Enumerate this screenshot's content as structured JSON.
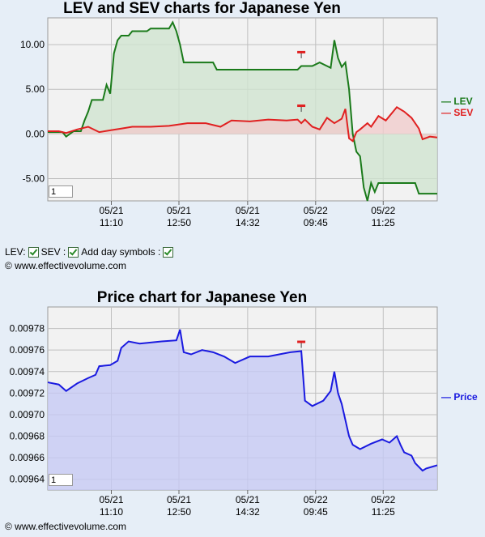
{
  "chart_data": [
    {
      "type": "line",
      "title": "LEV and SEV charts for Japanese Yen",
      "x_tick_labels": [
        [
          "05/21",
          "11:10"
        ],
        [
          "05/21",
          "12:50"
        ],
        [
          "05/21",
          "14:32"
        ],
        [
          "05/22",
          "09:45"
        ],
        [
          "05/22",
          "11:25"
        ]
      ],
      "y_ticks": [
        "10.00",
        "5.00",
        "0.00",
        "-5.00"
      ],
      "ylim": [
        -7.5,
        13
      ],
      "series": [
        {
          "name": "LEV",
          "color": "#1a7a1a",
          "fill": "#cfe3cf",
          "points": [
            [
              0,
              0.2
            ],
            [
              4,
              0.2
            ],
            [
              5,
              -0.3
            ],
            [
              7,
              0.3
            ],
            [
              9,
              0.3
            ],
            [
              10,
              1.5
            ],
            [
              11,
              2.5
            ],
            [
              12,
              3.8
            ],
            [
              15,
              3.8
            ],
            [
              16,
              5.5
            ],
            [
              17,
              4.5
            ],
            [
              18,
              9
            ],
            [
              19,
              10.5
            ],
            [
              20,
              11
            ],
            [
              22,
              11
            ],
            [
              23,
              11.5
            ],
            [
              27,
              11.5
            ],
            [
              28,
              11.8
            ],
            [
              33,
              11.8
            ],
            [
              34,
              12.5
            ],
            [
              35,
              11.5
            ],
            [
              36,
              10
            ],
            [
              37,
              8
            ],
            [
              45,
              8
            ],
            [
              46,
              7.2
            ],
            [
              68,
              7.2
            ],
            [
              69,
              7.6
            ],
            [
              72,
              7.6
            ],
            [
              74,
              8
            ],
            [
              77,
              7.4
            ],
            [
              78,
              10.5
            ],
            [
              79,
              8.5
            ],
            [
              80,
              7.5
            ],
            [
              81,
              8
            ],
            [
              82,
              5
            ],
            [
              83,
              0
            ],
            [
              84,
              -2
            ],
            [
              85,
              -2.5
            ],
            [
              86,
              -6
            ],
            [
              87,
              -7.5
            ],
            [
              88,
              -5.5
            ],
            [
              89,
              -6.5
            ],
            [
              90,
              -5.5
            ],
            [
              100,
              -5.5
            ],
            [
              101,
              -6.7
            ],
            [
              106,
              -6.7
            ]
          ]
        },
        {
          "name": "SEV",
          "color": "#e02020",
          "fill": "#f0cccc",
          "points": [
            [
              0,
              0.3
            ],
            [
              3,
              0.3
            ],
            [
              5,
              0.1
            ],
            [
              8,
              0.5
            ],
            [
              11,
              0.8
            ],
            [
              14,
              0.2
            ],
            [
              17,
              0.4
            ],
            [
              20,
              0.6
            ],
            [
              23,
              0.8
            ],
            [
              28,
              0.8
            ],
            [
              33,
              0.9
            ],
            [
              38,
              1.2
            ],
            [
              43,
              1.2
            ],
            [
              47,
              0.8
            ],
            [
              50,
              1.5
            ],
            [
              55,
              1.4
            ],
            [
              60,
              1.6
            ],
            [
              65,
              1.5
            ],
            [
              68,
              1.6
            ],
            [
              69,
              1.2
            ],
            [
              70,
              1.6
            ],
            [
              72,
              0.8
            ],
            [
              74,
              0.5
            ],
            [
              76,
              1.8
            ],
            [
              78,
              1.2
            ],
            [
              80,
              1.7
            ],
            [
              81,
              2.8
            ],
            [
              82,
              -0.5
            ],
            [
              83,
              -0.8
            ],
            [
              84,
              0.2
            ],
            [
              85,
              0.5
            ],
            [
              87,
              1.2
            ],
            [
              88,
              0.8
            ],
            [
              90,
              2
            ],
            [
              92,
              1.5
            ],
            [
              95,
              3
            ],
            [
              97,
              2.5
            ],
            [
              99,
              1.8
            ],
            [
              101,
              0.6
            ],
            [
              102,
              -0.6
            ],
            [
              104,
              -0.3
            ],
            [
              106,
              -0.4
            ]
          ]
        }
      ],
      "markers": [
        {
          "x": 69,
          "y": 9.2
        },
        {
          "x": 69,
          "y": 3.2
        }
      ],
      "legend_position": "right",
      "zoom_value": "1"
    },
    {
      "type": "area",
      "title": "Price chart for Japanese Yen",
      "x_tick_labels": [
        [
          "05/21",
          "11:10"
        ],
        [
          "05/21",
          "12:50"
        ],
        [
          "05/21",
          "14:32"
        ],
        [
          "05/22",
          "09:45"
        ],
        [
          "05/22",
          "11:25"
        ]
      ],
      "y_ticks": [
        "0.00978",
        "0.00976",
        "0.00974",
        "0.00972",
        "0.00970",
        "0.00968",
        "0.00966",
        "0.00964"
      ],
      "ylim": [
        0.00963,
        0.0098
      ],
      "series": [
        {
          "name": "Price",
          "color": "#1a1ae0",
          "fill": "#c6c9f4",
          "points": [
            [
              0,
              0.00973
            ],
            [
              3,
              0.009728
            ],
            [
              5,
              0.009722
            ],
            [
              8,
              0.009729
            ],
            [
              11,
              0.009734
            ],
            [
              13,
              0.009737
            ],
            [
              14,
              0.009745
            ],
            [
              17,
              0.009746
            ],
            [
              19,
              0.00975
            ],
            [
              20,
              0.009762
            ],
            [
              22,
              0.009768
            ],
            [
              25,
              0.009766
            ],
            [
              28,
              0.009767
            ],
            [
              31,
              0.009768
            ],
            [
              35,
              0.009769
            ],
            [
              36,
              0.009779
            ],
            [
              37,
              0.009758
            ],
            [
              39,
              0.009756
            ],
            [
              42,
              0.00976
            ],
            [
              45,
              0.009758
            ],
            [
              48,
              0.009754
            ],
            [
              51,
              0.009748
            ],
            [
              55,
              0.009754
            ],
            [
              60,
              0.009754
            ],
            [
              63,
              0.009756
            ],
            [
              66,
              0.009758
            ],
            [
              69,
              0.009759
            ],
            [
              70,
              0.009713
            ],
            [
              72,
              0.009708
            ],
            [
              75,
              0.009713
            ],
            [
              77,
              0.009722
            ],
            [
              78,
              0.00974
            ],
            [
              79,
              0.00972
            ],
            [
              80,
              0.00971
            ],
            [
              81,
              0.009695
            ],
            [
              82,
              0.00968
            ],
            [
              83,
              0.009672
            ],
            [
              85,
              0.009668
            ],
            [
              88,
              0.009673
            ],
            [
              91,
              0.009677
            ],
            [
              93,
              0.009674
            ],
            [
              95,
              0.00968
            ],
            [
              96,
              0.009672
            ],
            [
              97,
              0.009665
            ],
            [
              99,
              0.009662
            ],
            [
              100,
              0.009655
            ],
            [
              102,
              0.009648
            ],
            [
              103,
              0.00965
            ],
            [
              105,
              0.009652
            ],
            [
              106,
              0.009653
            ]
          ]
        }
      ],
      "markers": [
        {
          "x": 69,
          "y": 0.009768
        }
      ],
      "legend_position": "right",
      "zoom_value": "1"
    }
  ],
  "controls": {
    "lev_label": "LEV:",
    "sev_label": "SEV :",
    "day_symbols_label": "Add day symbols :"
  },
  "copyright": "© www.effectivevolume.com"
}
